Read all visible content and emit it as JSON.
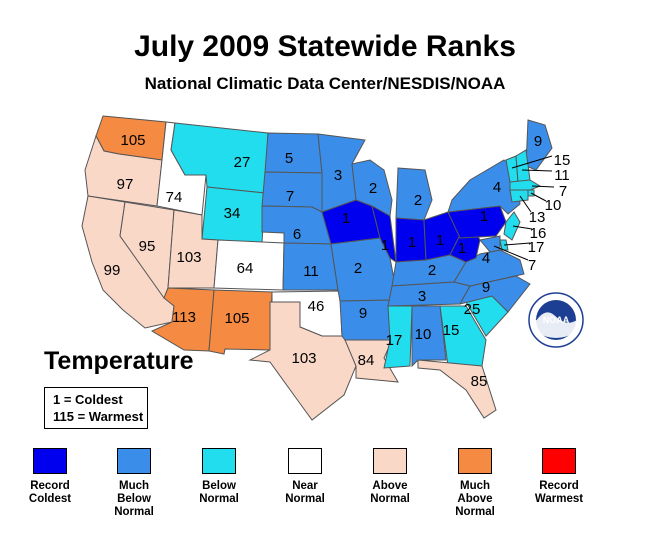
{
  "title": "July 2009 Statewide Ranks",
  "subtitle": "National Climatic Data Center/NESDIS/NOAA",
  "panel_title": "Temperature",
  "key": {
    "coldest": "1 = Coldest",
    "warmest": "115 = Warmest"
  },
  "legend": [
    {
      "label": "Record\nColdest",
      "color": "#0000ee"
    },
    {
      "label": "Much\nBelow\nNormal",
      "color": "#3a8eea"
    },
    {
      "label": "Below\nNormal",
      "color": "#22ddee"
    },
    {
      "label": "Near\nNormal",
      "color": "#ffffff"
    },
    {
      "label": "Above\nNormal",
      "color": "#fad8c8"
    },
    {
      "label": "Much\nAbove\nNormal",
      "color": "#f58a42"
    },
    {
      "label": "Record\nWarmest",
      "color": "#ff0000"
    }
  ],
  "logo_text": "NOAA",
  "states": [
    {
      "name": "Washington",
      "rank": "105",
      "category": 5
    },
    {
      "name": "Oregon",
      "rank": "97",
      "category": 4
    },
    {
      "name": "California",
      "rank": "99",
      "category": 4
    },
    {
      "name": "Idaho",
      "rank": "74",
      "category": 3
    },
    {
      "name": "Nevada",
      "rank": "95",
      "category": 4
    },
    {
      "name": "Montana",
      "rank": "27",
      "category": 2
    },
    {
      "name": "Wyoming",
      "rank": "34",
      "category": 2
    },
    {
      "name": "Utah",
      "rank": "103",
      "category": 4
    },
    {
      "name": "Colorado",
      "rank": "64",
      "category": 3
    },
    {
      "name": "Arizona",
      "rank": "113",
      "category": 5
    },
    {
      "name": "New Mexico",
      "rank": "105",
      "category": 5
    },
    {
      "name": "North Dakota",
      "rank": "5",
      "category": 1
    },
    {
      "name": "South Dakota",
      "rank": "7",
      "category": 1
    },
    {
      "name": "Nebraska",
      "rank": "6",
      "category": 1
    },
    {
      "name": "Kansas",
      "rank": "11",
      "category": 1
    },
    {
      "name": "Oklahoma",
      "rank": "46",
      "category": 3
    },
    {
      "name": "Texas",
      "rank": "103",
      "category": 4
    },
    {
      "name": "Minnesota",
      "rank": "3",
      "category": 1
    },
    {
      "name": "Iowa",
      "rank": "1",
      "category": 0
    },
    {
      "name": "Missouri",
      "rank": "2",
      "category": 1
    },
    {
      "name": "Arkansas",
      "rank": "9",
      "category": 1
    },
    {
      "name": "Louisiana",
      "rank": "84",
      "category": 4
    },
    {
      "name": "Wisconsin",
      "rank": "2",
      "category": 1
    },
    {
      "name": "Illinois",
      "rank": "1",
      "category": 0
    },
    {
      "name": "Michigan",
      "rank": "2",
      "category": 1
    },
    {
      "name": "Indiana",
      "rank": "1",
      "category": 0
    },
    {
      "name": "Ohio",
      "rank": "1",
      "category": 0
    },
    {
      "name": "Kentucky",
      "rank": "2",
      "category": 1
    },
    {
      "name": "Tennessee",
      "rank": "3",
      "category": 1
    },
    {
      "name": "Mississippi",
      "rank": "17",
      "category": 2
    },
    {
      "name": "Alabama",
      "rank": "10",
      "category": 1
    },
    {
      "name": "Georgia",
      "rank": "15",
      "category": 2
    },
    {
      "name": "Florida",
      "rank": "85",
      "category": 4
    },
    {
      "name": "South Carolina",
      "rank": "25",
      "category": 2
    },
    {
      "name": "North Carolina",
      "rank": "9",
      "category": 1
    },
    {
      "name": "Virginia",
      "rank": "4",
      "category": 1
    },
    {
      "name": "West Virginia",
      "rank": "1",
      "category": 0
    },
    {
      "name": "Pennsylvania",
      "rank": "1",
      "category": 0
    },
    {
      "name": "New York",
      "rank": "4",
      "category": 1
    },
    {
      "name": "Maine",
      "rank": "9",
      "category": 1
    },
    {
      "name": "Vermont",
      "rank": "15",
      "category": 2
    },
    {
      "name": "New Hampshire",
      "rank": "11",
      "category": 2
    },
    {
      "name": "Massachusetts",
      "rank": "7",
      "category": 2
    },
    {
      "name": "Rhode Island",
      "rank": "10",
      "category": 2
    },
    {
      "name": "Connecticut",
      "rank": "13",
      "category": 2
    },
    {
      "name": "New Jersey",
      "rank": "16",
      "category": 2
    },
    {
      "name": "Delaware",
      "rank": "17",
      "category": 2
    },
    {
      "name": "Maryland",
      "rank": "7",
      "category": 1
    }
  ]
}
